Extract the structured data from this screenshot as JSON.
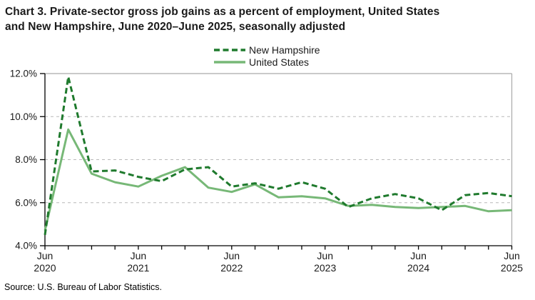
{
  "title": {
    "line1": "Chart 3. Private-sector gross job gains as a percent of employment, United States",
    "line2": "and New Hampshire, June 2020–June 2025, seasonally adjusted"
  },
  "legend": {
    "items": [
      {
        "label": "New Hampshire",
        "line_style": "dashed",
        "color": "#1f7a2d"
      },
      {
        "label": "United States",
        "line_style": "solid",
        "color": "#77b877"
      }
    ]
  },
  "source": "Source: U.S. Bureau of Labor Statistics.",
  "colors": {
    "nh_line": "#1f7a2d",
    "us_line": "#77b877",
    "grid": "#b8b8b8",
    "frame": "#a9a9a9",
    "axis": "#000000",
    "text": "#1a1a1a"
  },
  "chart_data": {
    "type": "line",
    "title": "Chart 3. Private-sector gross job gains as a percent of employment, United States and New Hampshire, June 2020–June 2025, seasonally adjusted",
    "x": [
      "Jun 2020",
      "Sep 2020",
      "Dec 2020",
      "Mar 2021",
      "Jun 2021",
      "Sep 2021",
      "Dec 2021",
      "Mar 2022",
      "Jun 2022",
      "Sep 2022",
      "Dec 2022",
      "Mar 2023",
      "Jun 2023",
      "Sep 2023",
      "Dec 2023",
      "Mar 2024",
      "Jun 2024",
      "Sep 2024",
      "Dec 2024",
      "Mar 2025",
      "Jun 2025"
    ],
    "series": [
      {
        "name": "New Hampshire",
        "style": "dashed",
        "color": "#1f7a2d",
        "values": [
          4.5,
          11.85,
          7.45,
          7.5,
          7.2,
          7.0,
          7.55,
          7.65,
          6.75,
          6.9,
          6.65,
          6.95,
          6.65,
          5.8,
          6.2,
          6.4,
          6.2,
          5.65,
          6.35,
          6.45,
          6.3
        ]
      },
      {
        "name": "United States",
        "style": "solid",
        "color": "#77b877",
        "values": [
          4.7,
          9.4,
          7.35,
          6.95,
          6.75,
          7.25,
          7.65,
          6.7,
          6.5,
          6.85,
          6.25,
          6.3,
          6.2,
          5.85,
          5.9,
          5.8,
          5.75,
          5.8,
          5.85,
          5.6,
          5.65
        ]
      }
    ],
    "ylim": [
      4,
      12
    ],
    "y_ticks": [
      4,
      6,
      8,
      10,
      12
    ],
    "y_tick_labels": [
      "4.0%",
      "6.0%",
      "8.0%",
      "10.0%",
      "12.0%"
    ],
    "grid_values": [
      6,
      8,
      10
    ],
    "grid_style": "dashed",
    "xlabel": "",
    "ylabel": "",
    "legend_position": "top-center",
    "x_major_ticks": [
      {
        "index": 0,
        "line1": "Jun",
        "line2": "2020"
      },
      {
        "index": 4,
        "line1": "Jun",
        "line2": "2021"
      },
      {
        "index": 8,
        "line1": "Jun",
        "line2": "2022"
      },
      {
        "index": 12,
        "line1": "Jun",
        "line2": "2023"
      },
      {
        "index": 16,
        "line1": "Jun",
        "line2": "2024"
      },
      {
        "index": 20,
        "line1": "Jun",
        "line2": "2025"
      }
    ]
  }
}
